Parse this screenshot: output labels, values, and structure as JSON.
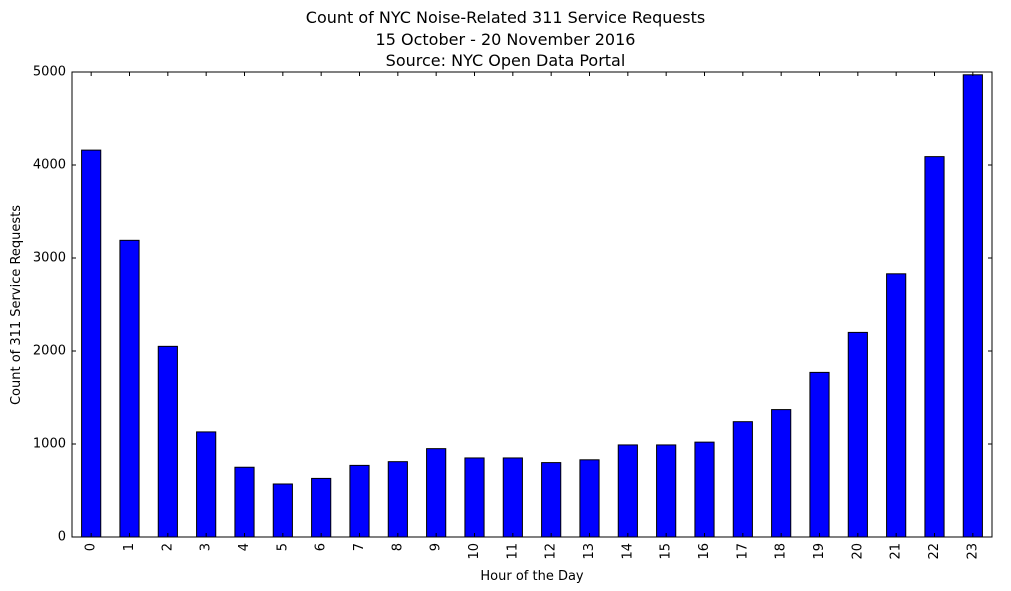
{
  "chart_data": {
    "type": "bar",
    "title": "Count of NYC Noise-Related 311 Service Requests",
    "subtitle": "15 October - 20 November 2016",
    "source": "Source: NYC Open Data Portal",
    "xlabel": "Hour of the Day",
    "ylabel": "Count of 311 Service Requests",
    "categories": [
      "0",
      "1",
      "2",
      "3",
      "4",
      "5",
      "6",
      "7",
      "8",
      "9",
      "10",
      "11",
      "12",
      "13",
      "14",
      "15",
      "16",
      "17",
      "18",
      "19",
      "20",
      "21",
      "22",
      "23"
    ],
    "values": [
      4160,
      3190,
      2050,
      1130,
      750,
      570,
      630,
      770,
      810,
      950,
      850,
      850,
      800,
      830,
      990,
      990,
      1020,
      1240,
      1370,
      1770,
      2200,
      2830,
      4090,
      4970
    ],
    "ylim": [
      0,
      5000
    ],
    "yticks": [
      0,
      1000,
      2000,
      3000,
      4000,
      5000
    ],
    "bar_color": "#0000ff",
    "edge_color": "#000000",
    "grid": false,
    "legend": "none"
  }
}
